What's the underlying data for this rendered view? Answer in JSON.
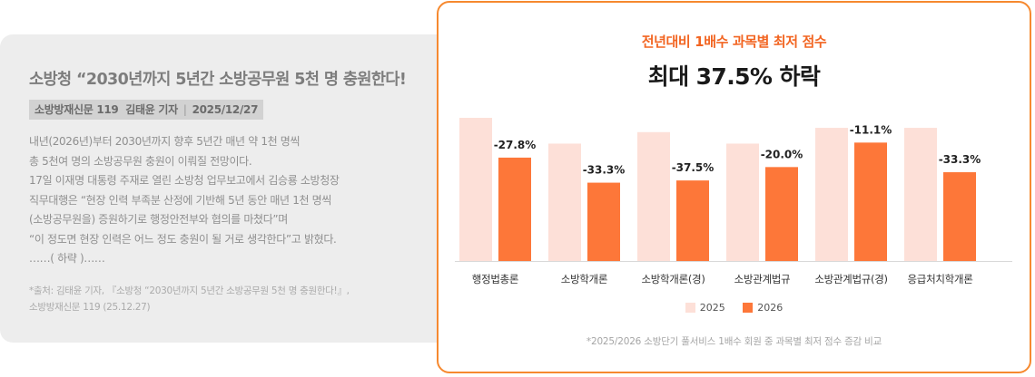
{
  "news": {
    "title": "소방청 “2030년까지 5년간 소방공무원 5천 명 충원한다!",
    "meta": {
      "outlet": "소방방재신문 119",
      "reporter": "김태윤 기자",
      "date": "2025/12/27"
    },
    "body_lines": [
      "내년(2026년)부터 2030년까지 향후 5년간 매년 약 1천 명씩",
      "총 5천여 명의 소방공무원 충원이 이뤄질 전망이다.",
      "17일 이재명 대통령 주재로 열린 소방청 업무보고에서 김승룡 소방청장",
      "직무대행은 “현장 인력 부족분 산정에 기반해 5년 동안 매년 1천 명씩",
      "(소방공무원을) 증원하기로 행정안전부와 협의를 마쳤다”며",
      "“이 정도면 현장 인력은 어느 정도 충원이 될 거로 생각한다”고 밝혔다.",
      "……( 하략 )……"
    ],
    "source_lines": [
      "*출처: 김태윤 기자, 『소방청 “2030년까지 5년간 소방공무원 5천 명 충원한다!』,",
      "소방방재신문 119 (25.12.27)"
    ]
  },
  "chart_data": {
    "type": "bar",
    "subtitle": "전년대비 1배수 과목별 최저 점수",
    "title": "최대 37.5% 하락",
    "categories": [
      "행정법총론",
      "소방학개론",
      "소방학개론(경)",
      "소방관계법규",
      "소방관계법규(경)",
      "응급처치학개론"
    ],
    "series": [
      {
        "name": "2025",
        "values": [
          100,
          82,
          90,
          82,
          93,
          93
        ],
        "color": "#fde0d8"
      },
      {
        "name": "2026",
        "values": [
          72.2,
          54.7,
          56.25,
          65.6,
          82.7,
          62.0
        ],
        "color": "#fd7739"
      }
    ],
    "data_labels": [
      "-27.8%",
      "-33.3%",
      "-37.5%",
      "-20.0%",
      "-11.1%",
      "-33.3%"
    ],
    "ylim": [
      0,
      100
    ],
    "legend": "bottom-center",
    "grid": false,
    "footnote": "*2025/2026 소방단기 풀서비스 1배수 회원 중 과목별 최저 점수 증감 비교"
  }
}
